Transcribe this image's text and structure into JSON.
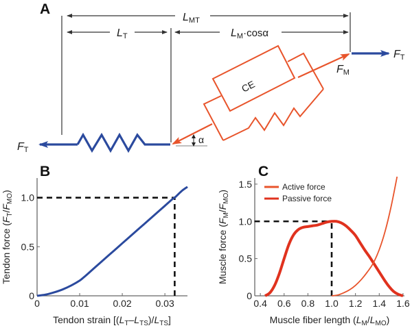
{
  "panel_a": {
    "label": "A",
    "length_labels": {
      "musculotendon": {
        "main": "L",
        "sub": "MT"
      },
      "tendon": {
        "main": "L",
        "sub": "T"
      },
      "muscle_projected": {
        "main": "L",
        "sub": "M",
        "suffix": "·cosα"
      }
    },
    "force_labels": {
      "tendon_left": {
        "main": "F",
        "sub": "T"
      },
      "tendon_right": {
        "main": "F",
        "sub": "T"
      },
      "muscle": {
        "main": "F",
        "sub": "M"
      }
    },
    "contractile_element": "CE",
    "pennation_angle": "α",
    "colors": {
      "tendon": "#2b4a9e",
      "muscle": "#e8542b",
      "dimension": "#222222"
    }
  },
  "chart_data": [
    {
      "id": "B",
      "type": "line",
      "title": "",
      "panel_label": "B",
      "xlabel": "Tendon strain [(L_T–L_TS)/L_TS]",
      "xlabel_parts": {
        "pre": "Tendon strain [(",
        "l1": "L",
        "s1": "T",
        "mid": "–",
        "l2": "L",
        "s2": "TS",
        "slash": ")/",
        "l3": "L",
        "s3": "TS",
        "post": "]"
      },
      "ylabel": "Tendon force (F_T/F_MO)",
      "ylabel_parts": {
        "pre": "Tendon force (",
        "l1": "F",
        "s1": "T",
        "slash": "/",
        "l2": "F",
        "s2": "MO",
        "post": ")"
      },
      "xlim": [
        0,
        0.035
      ],
      "ylim": [
        0,
        1.2
      ],
      "xticks": [
        0,
        0.01,
        0.02,
        0.03
      ],
      "xtick_labels": [
        "0",
        "0.01",
        "0.02",
        "0.03"
      ],
      "yticks": [
        0,
        0.5,
        1.0
      ],
      "ytick_labels": [
        "0",
        "0.5",
        "1.0"
      ],
      "grid": false,
      "series": [
        {
          "name": "Tendon force",
          "color": "#2b4a9e",
          "x": [
            0,
            0.002,
            0.004,
            0.006,
            0.008,
            0.01,
            0.011,
            0.012,
            0.014,
            0.016,
            0.018,
            0.02,
            0.022,
            0.024,
            0.026,
            0.028,
            0.03,
            0.032,
            0.0323,
            0.034,
            0.0353
          ],
          "y": [
            0,
            0.012,
            0.035,
            0.065,
            0.105,
            0.155,
            0.19,
            0.228,
            0.305,
            0.382,
            0.458,
            0.535,
            0.611,
            0.688,
            0.764,
            0.841,
            0.917,
            0.994,
            1.0,
            1.07,
            1.11
          ]
        }
      ],
      "reference_lines": [
        {
          "orientation": "horizontal",
          "y": 1.0,
          "x_range": [
            0,
            0.0323
          ],
          "style": "dashed"
        },
        {
          "orientation": "vertical",
          "x": 0.0323,
          "y_range": [
            0,
            1.0
          ],
          "style": "dashed"
        }
      ]
    },
    {
      "id": "C",
      "type": "line",
      "title": "",
      "panel_label": "C",
      "xlabel": "Muscle fiber length (L_M/L_MO)",
      "xlabel_parts": {
        "pre": "Muscle fiber length (",
        "l1": "L",
        "s1": "M",
        "slash": "/",
        "l2": "L",
        "s2": "MO",
        "post": ")"
      },
      "ylabel": "Muscle force (F_M/F_MO)",
      "ylabel_parts": {
        "pre": "Muscle force (",
        "l1": "F",
        "s1": "M",
        "slash": "/",
        "l2": "F",
        "s2": "MO",
        "post": ")"
      },
      "xlim": [
        0.35,
        1.6
      ],
      "ylim": [
        0,
        1.6
      ],
      "xticks": [
        0.4,
        0.6,
        0.8,
        1.0,
        1.2,
        1.4,
        1.6
      ],
      "xtick_labels": [
        "0.4",
        "0.6",
        "0.8",
        "1.0",
        "1.2",
        "1.4",
        "1.6"
      ],
      "yticks": [
        0,
        0.5,
        1.0,
        1.5
      ],
      "ytick_labels": [
        "0",
        "0.5",
        "1.0",
        "1.5"
      ],
      "grid": false,
      "legend": {
        "placement": "top-left",
        "entries": [
          "Active force",
          "Passive force"
        ]
      },
      "series": [
        {
          "name": "Active force",
          "color": "#e0321e",
          "weight": "thick",
          "x": [
            0.44,
            0.48,
            0.52,
            0.56,
            0.6,
            0.64,
            0.68,
            0.72,
            0.76,
            0.8,
            0.84,
            0.88,
            0.92,
            0.96,
            1.0,
            1.04,
            1.08,
            1.12,
            1.16,
            1.2,
            1.24,
            1.28,
            1.32,
            1.36,
            1.4,
            1.44,
            1.48,
            1.52,
            1.56,
            1.6
          ],
          "y": [
            0.0,
            0.04,
            0.14,
            0.3,
            0.5,
            0.69,
            0.82,
            0.89,
            0.92,
            0.93,
            0.94,
            0.95,
            0.97,
            0.99,
            1.0,
            1.0,
            0.98,
            0.94,
            0.88,
            0.81,
            0.71,
            0.61,
            0.52,
            0.42,
            0.32,
            0.22,
            0.13,
            0.06,
            0.02,
            0.0
          ]
        },
        {
          "name": "Passive force",
          "color": "#e8542b",
          "weight": "thin",
          "x": [
            1.0,
            1.05,
            1.1,
            1.15,
            1.2,
            1.25,
            1.3,
            1.35,
            1.4,
            1.45,
            1.5,
            1.55
          ],
          "y": [
            0.0,
            0.01,
            0.04,
            0.08,
            0.14,
            0.22,
            0.32,
            0.44,
            0.62,
            0.87,
            1.2,
            1.6
          ]
        }
      ],
      "reference_lines": [
        {
          "orientation": "horizontal",
          "y": 1.0,
          "x_range": [
            0.35,
            1.0
          ],
          "style": "dashed"
        },
        {
          "orientation": "vertical",
          "x": 1.0,
          "y_range": [
            0,
            1.0
          ],
          "style": "dashed"
        }
      ]
    }
  ]
}
